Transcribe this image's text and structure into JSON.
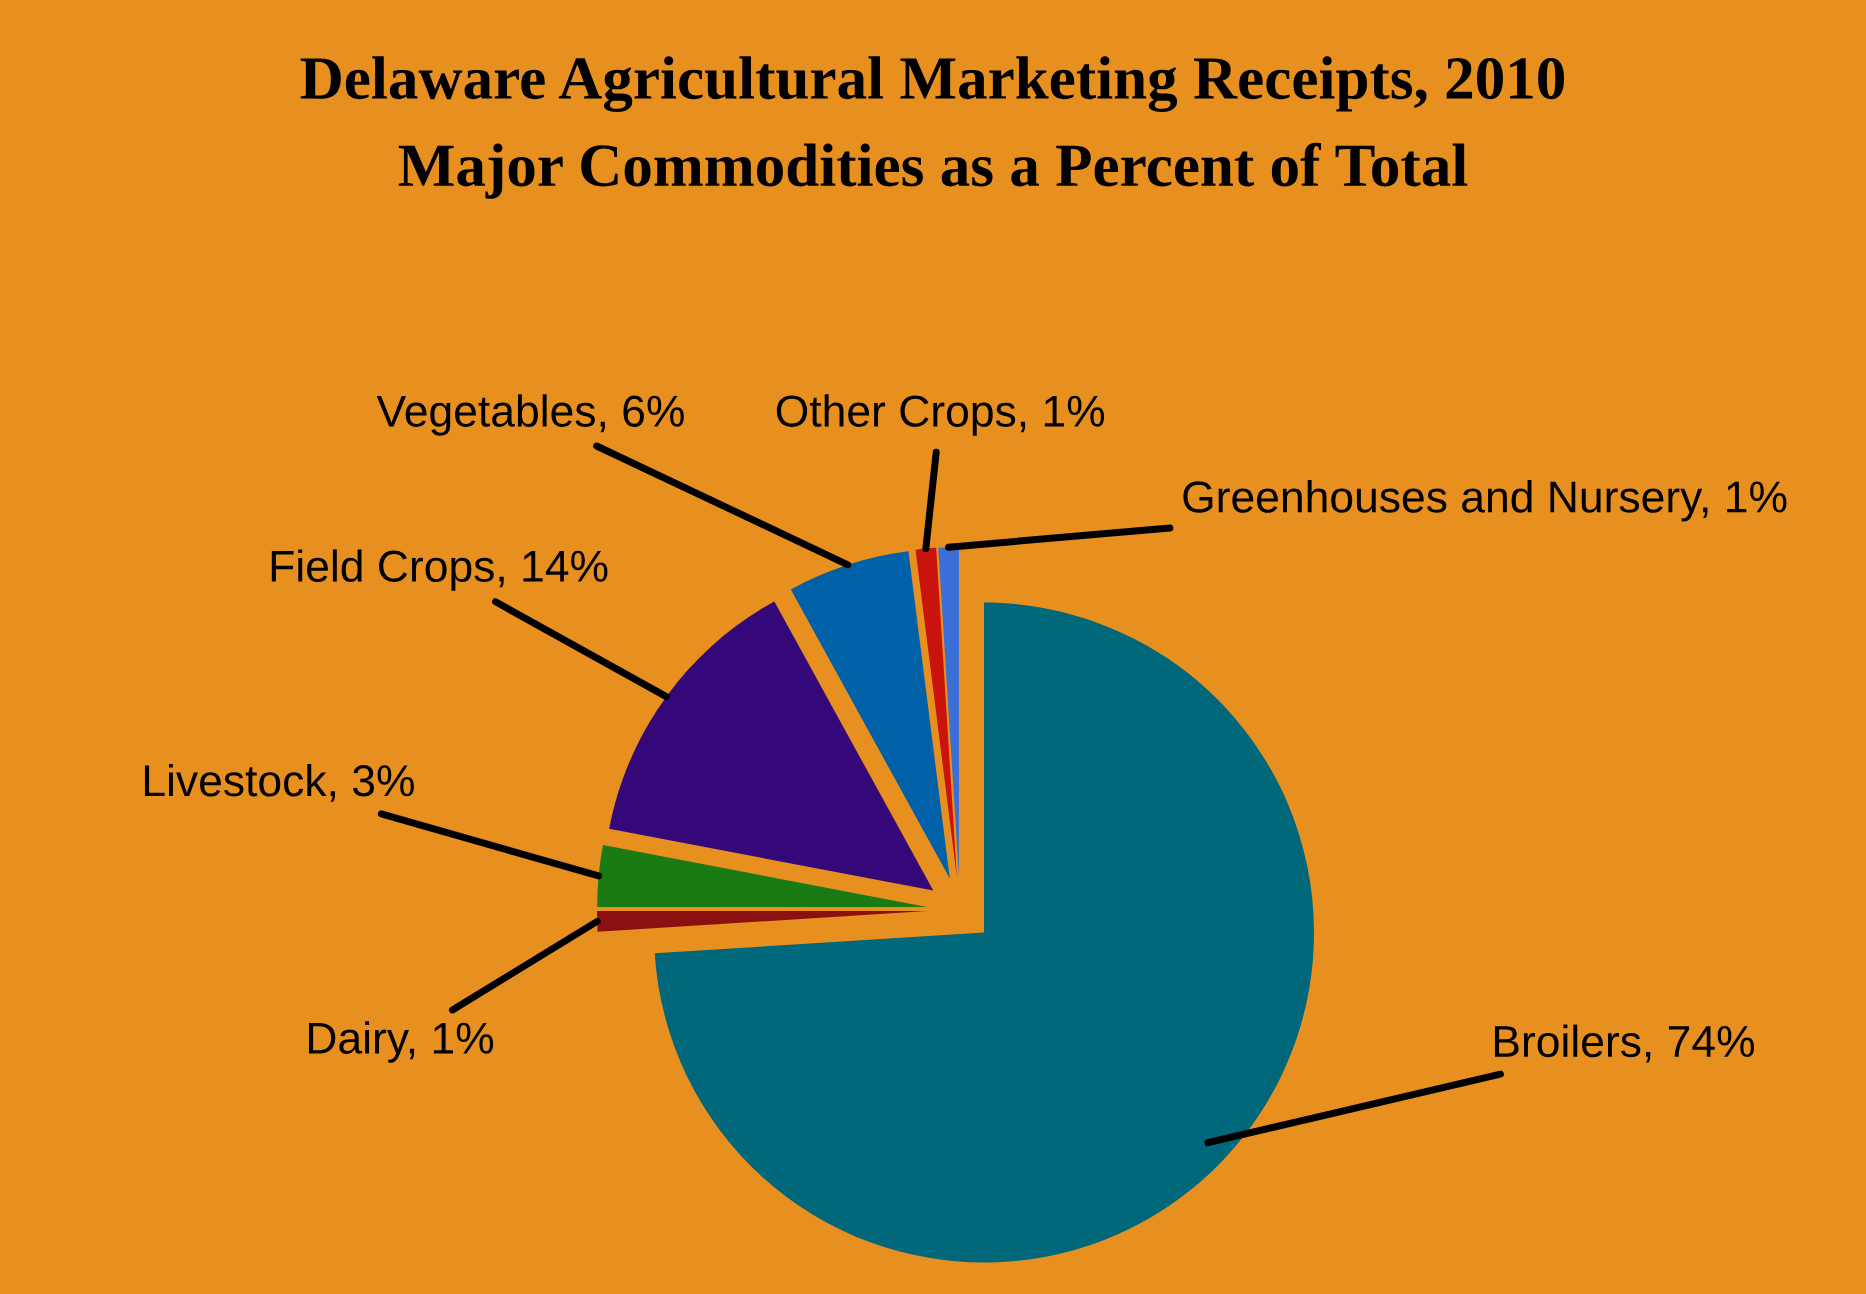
{
  "chart_data": {
    "type": "pie",
    "title": "Delaware Agricultural Marketing Receipts, 2010",
    "subtitle": "Major Commodities as a Percent of Total",
    "categories": [
      "Broilers",
      "Dairy",
      "Livestock",
      "Field Crops",
      "Vegetables",
      "Other Crops",
      "Greenhouses and Nursery"
    ],
    "values": [
      74,
      1,
      3,
      14,
      6,
      1,
      1
    ],
    "value_labels": [
      "74%",
      "1%",
      "3%",
      "14%",
      "6%",
      "1%",
      "1%"
    ],
    "colors": [
      "#00687a",
      "#8b1010",
      "#1a7a14",
      "#35087a",
      "#0060a8",
      "#c8140c",
      "#3b6fd8"
    ]
  }
}
